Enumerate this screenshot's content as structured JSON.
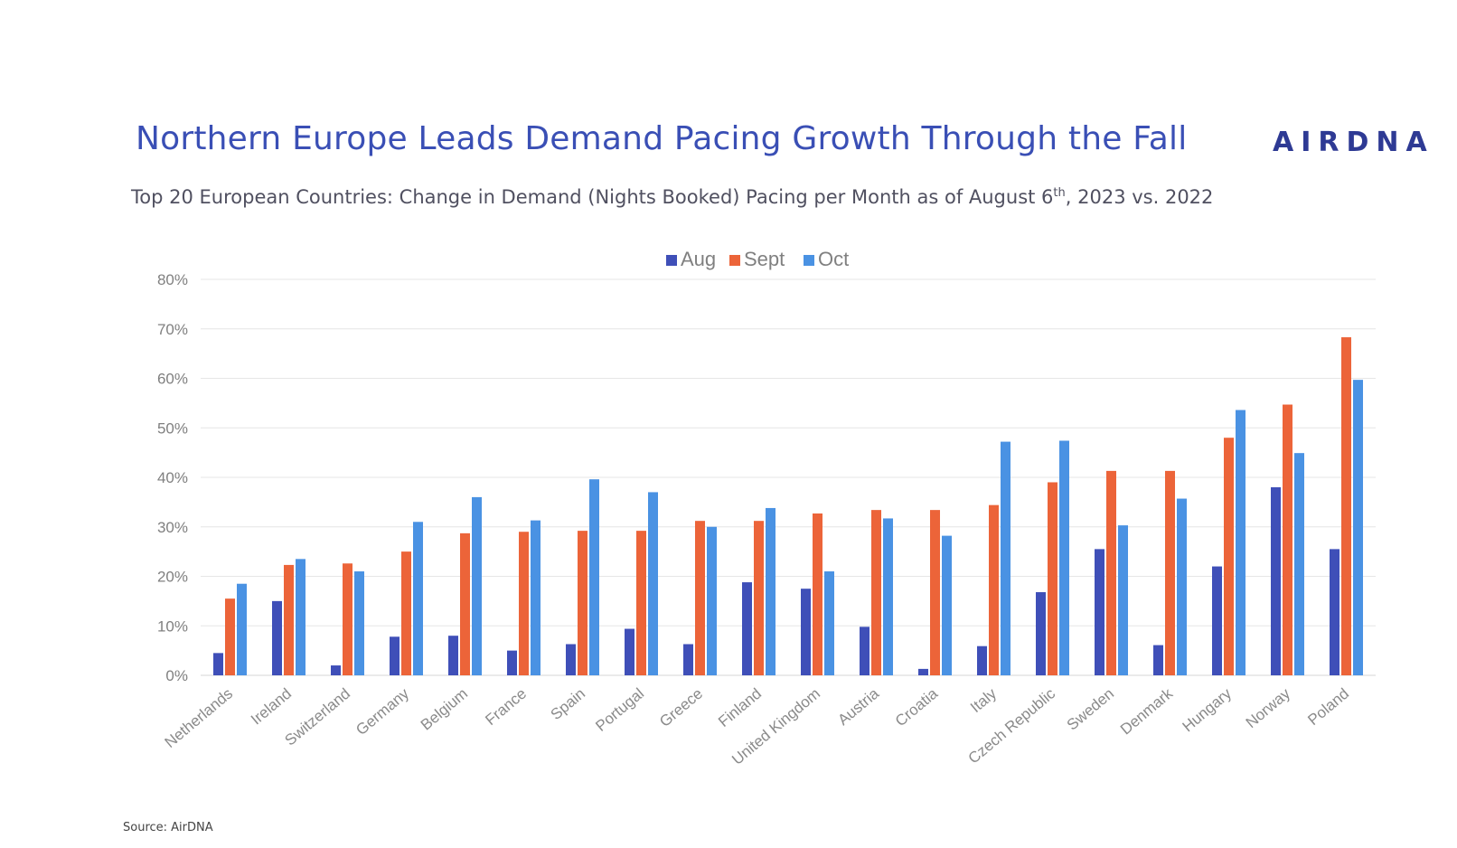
{
  "header": {
    "title": "Northern Europe Leads Demand Pacing Growth Through the Fall",
    "subtitle_pre": "Top 20 European Countries: Change in Demand (Nights Booked) Pacing per Month as of August 6",
    "subtitle_sup": "th",
    "subtitle_post": ", 2023 vs. 2022",
    "logo": "AIRDNA"
  },
  "footer": {
    "source": "Source: AirDNA"
  },
  "chart_data": {
    "type": "bar",
    "categories": [
      "Netherlands",
      "Ireland",
      "Switzerland",
      "Germany",
      "Belgium",
      "France",
      "Spain",
      "Portugal",
      "Greece",
      "Finland",
      "United Kingdom",
      "Austria",
      "Croatia",
      "Italy",
      "Czech Republic",
      "Sweden",
      "Denmark",
      "Hungary",
      "Norway",
      "Poland"
    ],
    "series": [
      {
        "name": "Aug",
        "color": "#3f4fb8",
        "values": [
          4.5,
          15,
          2,
          7.8,
          8,
          5,
          6.3,
          9.4,
          6.3,
          18.8,
          17.5,
          9.8,
          1.3,
          5.9,
          16.8,
          25.5,
          6.1,
          22,
          38,
          25.5
        ]
      },
      {
        "name": "Sept",
        "color": "#ec6439",
        "values": [
          15.5,
          22.3,
          22.6,
          25,
          28.7,
          29,
          29.2,
          29.2,
          31.2,
          31.2,
          32.7,
          33.4,
          33.4,
          34.4,
          39,
          41.3,
          41.3,
          48,
          54.7,
          68.3
        ]
      },
      {
        "name": "Oct",
        "color": "#4a92e3",
        "values": [
          18.5,
          23.5,
          21,
          31,
          36,
          31.3,
          39.6,
          37,
          30,
          33.8,
          21,
          31.7,
          28.2,
          47.2,
          47.4,
          30.3,
          35.7,
          53.6,
          44.9,
          59.7
        ]
      }
    ],
    "yticks": [
      "0%",
      "10%",
      "20%",
      "30%",
      "40%",
      "50%",
      "60%",
      "70%",
      "80%"
    ],
    "ylim": [
      0,
      80
    ],
    "grid": true,
    "legend": "top-center"
  }
}
